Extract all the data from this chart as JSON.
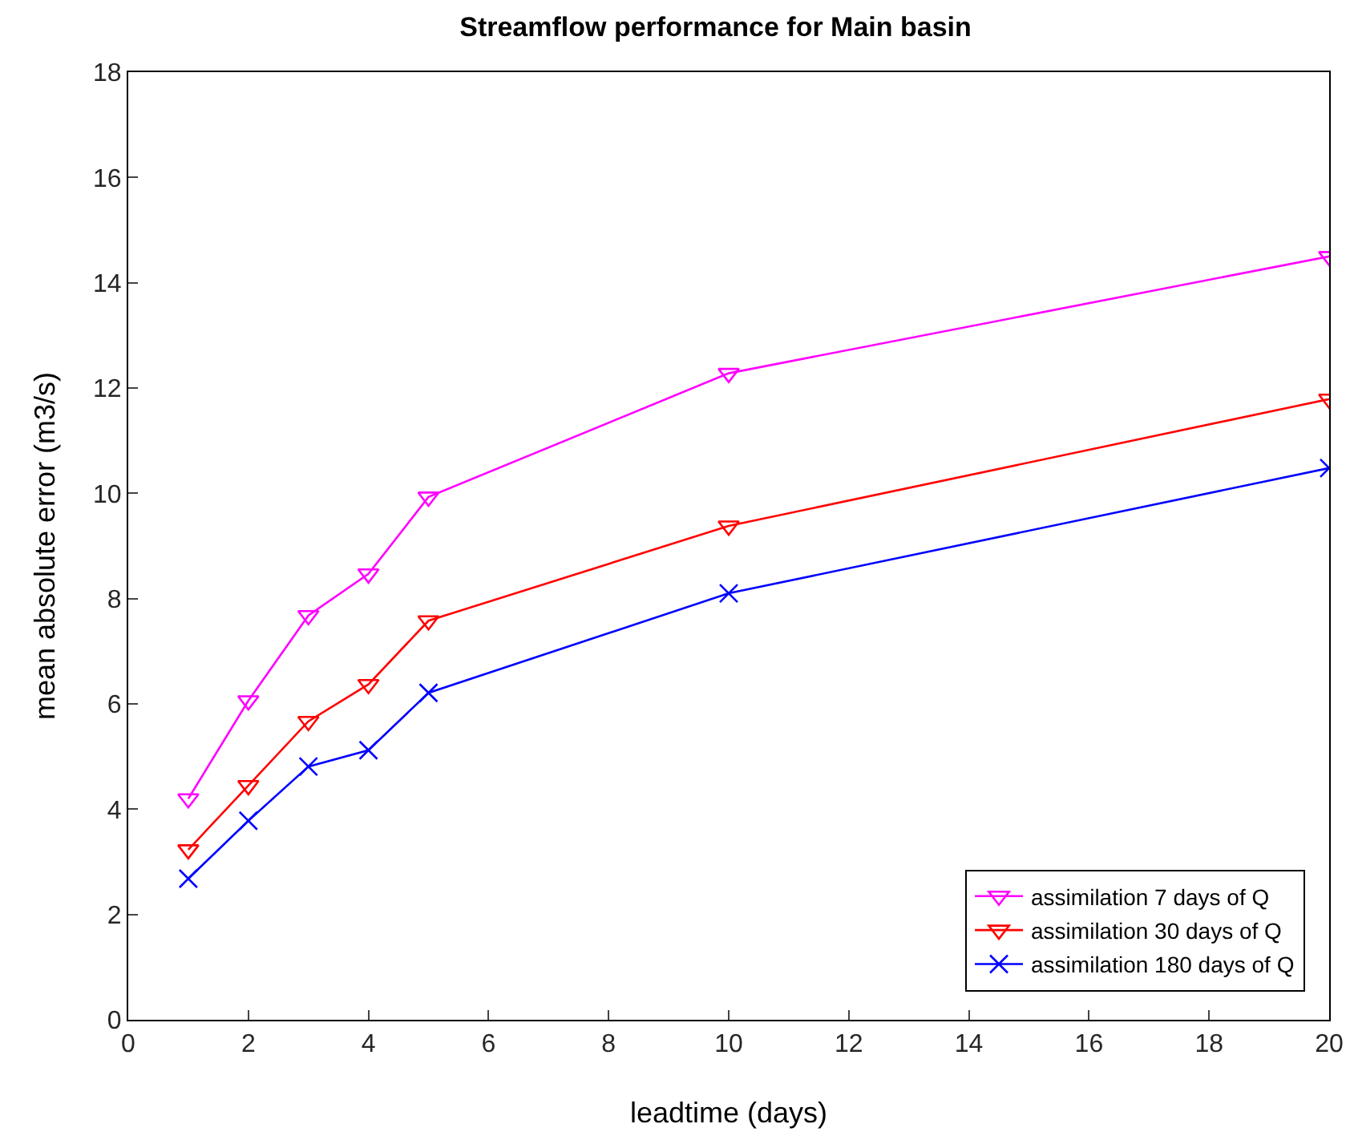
{
  "chart_data": {
    "type": "line",
    "title": "Streamflow performance for Main basin",
    "xlabel": "leadtime (days)",
    "ylabel": "mean absolute error (m3/s)",
    "x": [
      1,
      2,
      3,
      4,
      5,
      10,
      20
    ],
    "series": [
      {
        "name": "assimilation 7 days of Q",
        "color": "#ff00ff",
        "marker": "triangle",
        "values": [
          4.2,
          6.06,
          7.68,
          8.47,
          9.93,
          12.28,
          14.5
        ]
      },
      {
        "name": "assimilation 30 days of Q",
        "color": "#ff0000",
        "marker": "triangle",
        "values": [
          3.23,
          4.45,
          5.67,
          6.37,
          7.58,
          9.38,
          11.79
        ]
      },
      {
        "name": "assimilation 180 days of Q",
        "color": "#0000ff",
        "marker": "cross",
        "values": [
          2.68,
          3.78,
          4.81,
          5.12,
          6.21,
          8.1,
          10.48
        ]
      }
    ],
    "xlim": [
      0,
      20
    ],
    "xticks": [
      0,
      2,
      4,
      6,
      8,
      10,
      12,
      14,
      16,
      18,
      20
    ],
    "ylim": [
      0,
      18
    ],
    "yticks": [
      0,
      2,
      4,
      6,
      8,
      10,
      12,
      14,
      16,
      18
    ],
    "grid": false,
    "legend": "bottom right",
    "line_style": "solid"
  }
}
